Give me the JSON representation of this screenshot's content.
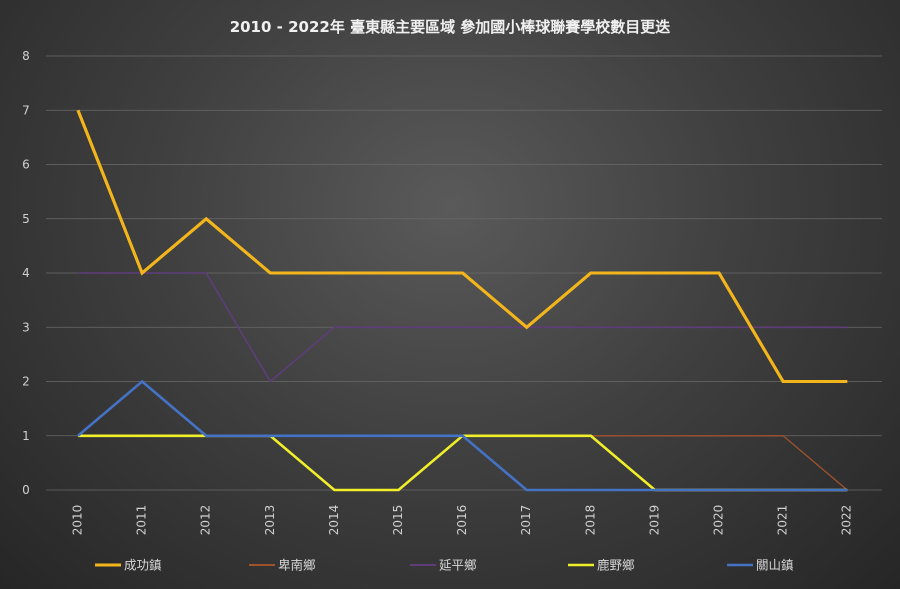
{
  "chart_data": {
    "type": "line",
    "title": "2010 - 2022年 臺東縣主要區域  參加國小棒球聯賽學校數目更迭",
    "x": [
      "2010",
      "2011",
      "2012",
      "2013",
      "2014",
      "2015",
      "2016",
      "2017",
      "2018",
      "2019",
      "2020",
      "2021",
      "2022"
    ],
    "ylim": [
      0,
      8
    ],
    "yticks": [
      "0",
      "1",
      "2",
      "3",
      "4",
      "5",
      "6",
      "7",
      "8"
    ],
    "grid": true,
    "legend_position": "bottom",
    "series": [
      {
        "name": "成功鎮",
        "color": "#f2b51c",
        "width": 3,
        "values": [
          7,
          4,
          5,
          4,
          4,
          4,
          4,
          3,
          4,
          4,
          4,
          2,
          2
        ]
      },
      {
        "name": "卑南鄉",
        "color": "#a0522d",
        "width": 1.3,
        "values": [
          1,
          1,
          1,
          1,
          1,
          1,
          1,
          1,
          1,
          1,
          1,
          1,
          0
        ]
      },
      {
        "name": "延平鄉",
        "color": "#5e3d7a",
        "width": 1.6,
        "values": [
          4,
          4,
          4,
          2,
          3,
          3,
          3,
          3,
          3,
          3,
          3,
          3,
          3
        ]
      },
      {
        "name": "鹿野鄉",
        "color": "#f0ef2a",
        "width": 2.6,
        "values": [
          1,
          1,
          1,
          1,
          0,
          0,
          1,
          1,
          1,
          0,
          0,
          0,
          0
        ]
      },
      {
        "name": "關山鎮",
        "color": "#4472c4",
        "width": 2.6,
        "values": [
          1,
          2,
          1,
          1,
          1,
          1,
          1,
          0,
          0,
          0,
          0,
          0,
          0
        ]
      }
    ]
  }
}
